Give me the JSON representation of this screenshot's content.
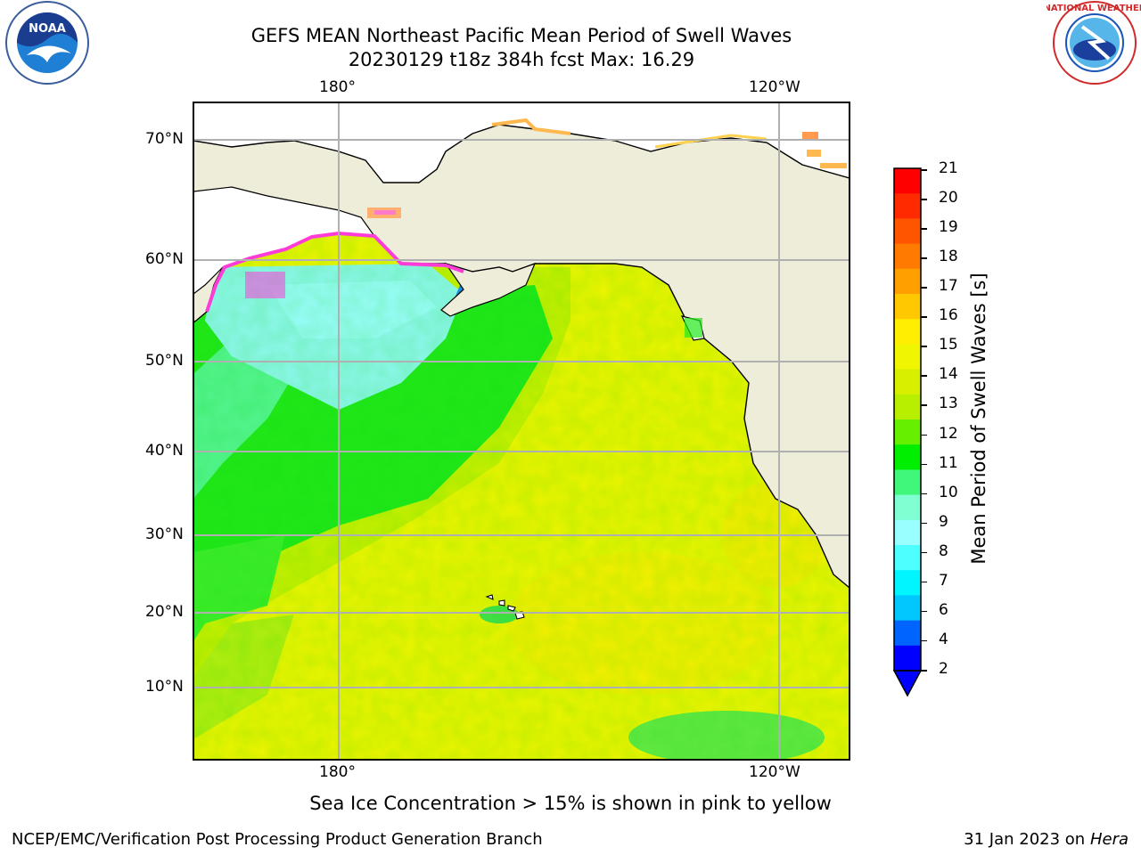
{
  "header": {
    "title_line1": "GEFS MEAN Northeast Pacific Mean Period of Swell Waves",
    "title_line2": "20230129 t18z 384h fcst   Max: 16.29"
  },
  "logos": {
    "left_name": "NOAA",
    "right_name": "NATIONAL WEATHER SERVICE"
  },
  "map": {
    "lon_labels_top": [
      "180°",
      "120°W"
    ],
    "lon_labels_bottom": [
      "180°",
      "120°W"
    ],
    "lat_labels": [
      "70°N",
      "60°N",
      "50°N",
      "40°N",
      "30°N",
      "20°N",
      "10°N"
    ],
    "colors": {
      "land": "#eeeddc",
      "ice_pink": "#ff3cd8",
      "ice_yellow": "#ffb84e",
      "gridline": "#b0b0b0"
    }
  },
  "colorbar": {
    "label": "Mean Period of Swell Waves [s]",
    "ticks": [
      "21",
      "20",
      "19",
      "18",
      "17",
      "16",
      "15",
      "14",
      "13",
      "12",
      "11",
      "10",
      "9",
      "8",
      "7",
      "6",
      "4",
      "2"
    ],
    "colors": [
      "#ff0000",
      "#ff2a00",
      "#ff5500",
      "#ff7a00",
      "#ffa000",
      "#ffc800",
      "#ffee00",
      "#f0f500",
      "#d8f000",
      "#b8ef00",
      "#66f000",
      "#00ee00",
      "#40f77a",
      "#80ffd2",
      "#9affff",
      "#4dffff",
      "#00f5ff",
      "#00c8ff",
      "#0064ff",
      "#0000ff"
    ]
  },
  "footer": {
    "note": "Sea Ice Concentration > 15% is shown in pink to yellow",
    "left": "NCEP/EMC/Verification Post Processing Product Generation Branch",
    "right_date": "31 Jan 2023 on",
    "right_host": "Hera"
  }
}
